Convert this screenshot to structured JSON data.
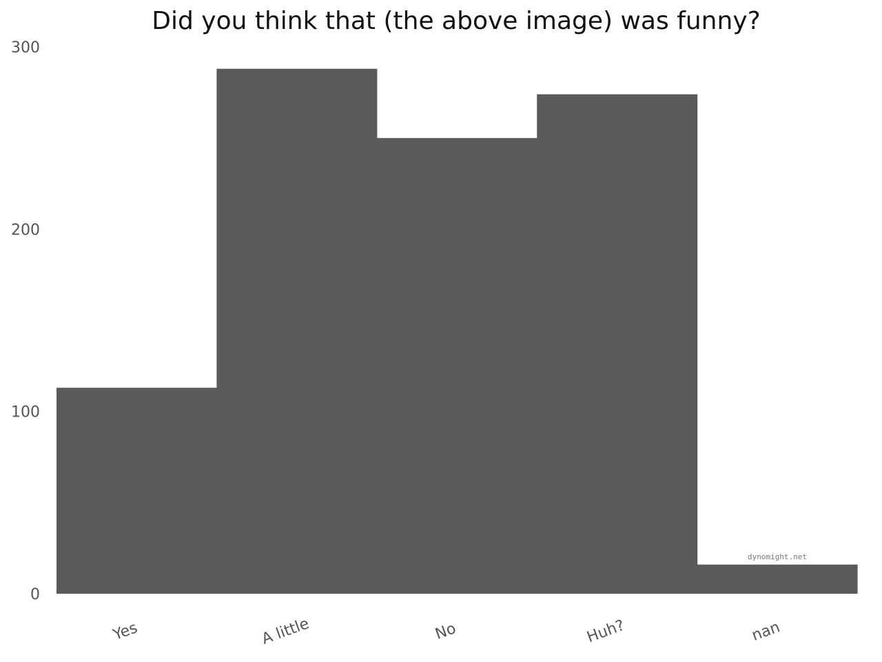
{
  "chart_data": {
    "type": "bar",
    "title": "Did you think that (the above image) was funny?",
    "xlabel": "",
    "ylabel": "",
    "categories": [
      "Yes",
      "A little",
      "No",
      "Huh?",
      "nan"
    ],
    "values": [
      113,
      288,
      250,
      274,
      16
    ],
    "ylim": [
      0,
      300
    ],
    "yticks": [
      0,
      100,
      200,
      300
    ],
    "grid": false,
    "legend": "none",
    "bar_color": "#5a5a5a"
  },
  "watermark": "dynomight.net"
}
